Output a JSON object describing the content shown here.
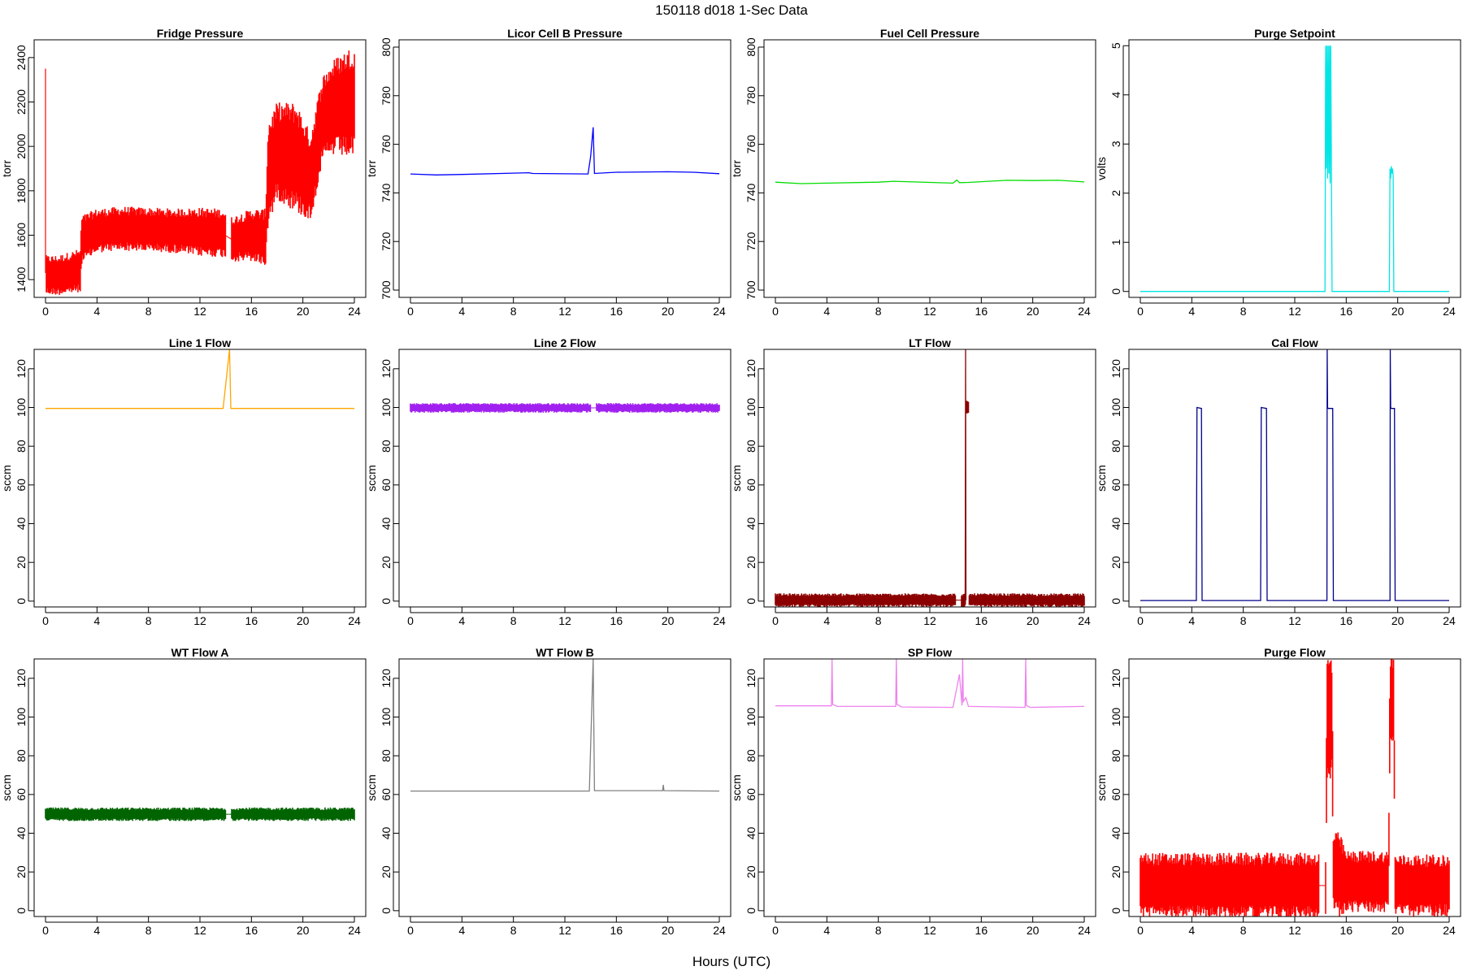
{
  "figure": {
    "title": "150118   d018   1-Sec Data",
    "xlabel": "Hours (UTC)",
    "x_ticks": [
      0,
      4,
      8,
      12,
      16,
      20,
      24
    ],
    "xlim": [
      0,
      24
    ]
  },
  "chart_data": [
    {
      "type": "line",
      "title": "Fridge Pressure",
      "ylabel": "torr",
      "color": "#ff0000",
      "ylim": [
        1320,
        2480
      ],
      "yticks": [
        1400,
        1600,
        1800,
        2000,
        2200,
        2400
      ],
      "series": [
        {
          "style": "noisy",
          "gap_after": 14,
          "x": [
            0,
            0.02,
            0.05,
            1,
            2.7,
            2.8,
            4,
            6,
            8,
            10,
            12,
            13.8,
            14.3,
            16,
            17.1,
            17.3,
            18,
            19.5,
            20.6,
            21.5,
            22.5,
            24
          ],
          "y": [
            2350,
            1430,
            1420,
            1420,
            1440,
            1580,
            1620,
            1630,
            1625,
            1620,
            1615,
            1610,
            1580,
            1600,
            1590,
            1880,
            1980,
            1950,
            1860,
            2120,
            2180,
            2200
          ],
          "noise": [
            0,
            90,
            90,
            90,
            100,
            110,
            100,
            100,
            100,
            100,
            110,
            110,
            100,
            120,
            130,
            240,
            220,
            250,
            200,
            200,
            220,
            260
          ]
        }
      ]
    },
    {
      "type": "line",
      "title": "Licor Cell B Pressure",
      "ylabel": "torr",
      "color": "#0000ff",
      "ylim": [
        697,
        803
      ],
      "yticks": [
        700,
        720,
        740,
        760,
        780,
        800
      ],
      "series": [
        {
          "style": "line",
          "x": [
            0,
            2,
            4,
            9.2,
            9.5,
            13.8,
            14,
            14.2,
            14.3,
            16,
            20,
            22,
            24
          ],
          "y": [
            747.8,
            747.4,
            747.6,
            748.3,
            748,
            747.8,
            755,
            767,
            748,
            748.5,
            748.7,
            748.5,
            747.9
          ]
        }
      ]
    },
    {
      "type": "line",
      "title": "Fuel Cell Pressure",
      "ylabel": "torr",
      "color": "#00dd00",
      "ylim": [
        697,
        803
      ],
      "yticks": [
        700,
        720,
        740,
        760,
        780,
        800
      ],
      "series": [
        {
          "style": "line",
          "x": [
            0,
            2,
            4,
            8,
            9.2,
            12,
            13.8,
            14.1,
            14.3,
            15,
            18,
            20,
            22,
            24
          ],
          "y": [
            744.4,
            743.8,
            744,
            744.4,
            744.8,
            744.3,
            744,
            745.3,
            744.2,
            744.3,
            745.2,
            745.1,
            745.2,
            744.5
          ]
        }
      ]
    },
    {
      "type": "line",
      "title": "Purge Setpoint",
      "ylabel": "volts",
      "color": "#00e5e5",
      "ylim": [
        -0.12,
        5.12
      ],
      "yticks": [
        0,
        1,
        2,
        3,
        4,
        5
      ],
      "series": [
        {
          "style": "line",
          "x": [
            0,
            14.35,
            14.4,
            14.45,
            14.5,
            14.55,
            14.6,
            14.65,
            14.7,
            14.75,
            14.8,
            14.85,
            14.9,
            14.95,
            19.35,
            19.4,
            19.45,
            19.5,
            19.55,
            19.6,
            19.65,
            19.7,
            24
          ],
          "y": [
            0,
            0,
            5,
            2.5,
            5,
            2.3,
            5,
            2.4,
            5,
            2.2,
            5,
            2.5,
            0,
            0,
            0,
            2.5,
            2.3,
            2.55,
            2.4,
            2.5,
            2.35,
            0,
            0
          ]
        }
      ]
    },
    {
      "type": "line",
      "title": "Line 1 Flow",
      "ylabel": "sccm",
      "color": "#ffa500",
      "ylim": [
        -3,
        130
      ],
      "yticks": [
        0,
        20,
        40,
        60,
        80,
        100,
        120
      ],
      "series": [
        {
          "style": "line",
          "x": [
            0,
            13.8,
            14.3,
            14.4,
            24
          ],
          "y": [
            99.5,
            99.5,
            130,
            99.5,
            99.5
          ]
        }
      ]
    },
    {
      "type": "line",
      "title": "Line 2 Flow",
      "ylabel": "sccm",
      "color": "#a020f0",
      "ylim": [
        -3,
        130
      ],
      "yticks": [
        0,
        20,
        40,
        60,
        80,
        100,
        120
      ],
      "series": [
        {
          "style": "noisy",
          "gap_after": 14,
          "x": [
            0,
            13.8,
            14.3,
            24
          ],
          "y": [
            99.8,
            99.8,
            99.8,
            99.8
          ],
          "noise": [
            2.5,
            2.5,
            2.5,
            2.5
          ]
        }
      ]
    },
    {
      "type": "line",
      "title": "LT Flow",
      "ylabel": "sccm",
      "color": "#8b0000",
      "ylim": [
        -3,
        130
      ],
      "yticks": [
        0,
        20,
        40,
        60,
        80,
        100,
        120
      ],
      "series": [
        {
          "style": "noisy",
          "gap_after": 14,
          "x": [
            0,
            13.8,
            14.3,
            14.8,
            14.82,
            15.0,
            15.02,
            24
          ],
          "y": [
            0.5,
            0.5,
            0.5,
            0.5,
            100,
            100,
            0.5,
            0.5
          ],
          "noise": [
            3.5,
            3.5,
            3.5,
            3.5,
            3.5,
            3.5,
            3.5,
            3.5
          ]
        },
        {
          "style": "line",
          "x": [
            14.75,
            14.78,
            14.81
          ],
          "y": [
            0.5,
            130,
            0.5
          ]
        }
      ]
    },
    {
      "type": "line",
      "title": "Cal Flow",
      "ylabel": "sccm",
      "color": "#00008b",
      "ylim": [
        -3,
        130
      ],
      "yticks": [
        0,
        20,
        40,
        60,
        80,
        100,
        120
      ],
      "series": [
        {
          "style": "line",
          "x": [
            0,
            4.35,
            4.4,
            4.75,
            4.8,
            9.35,
            9.4,
            9.8,
            9.85,
            14.5,
            14.52,
            14.55,
            14.6,
            14.95,
            15.0,
            19.4,
            19.42,
            19.45,
            19.5,
            19.75,
            19.8,
            24
          ],
          "y": [
            0.3,
            0.3,
            100,
            99.5,
            0.3,
            0.3,
            100,
            99.5,
            0.3,
            0.3,
            130,
            100,
            99.5,
            99.5,
            0.3,
            0.3,
            130,
            100,
            99.5,
            99.5,
            0.3,
            0.3
          ]
        }
      ]
    },
    {
      "type": "line",
      "title": "WT Flow A",
      "ylabel": "sccm",
      "color": "#006400",
      "ylim": [
        -3,
        130
      ],
      "yticks": [
        0,
        20,
        40,
        60,
        80,
        100,
        120
      ],
      "series": [
        {
          "style": "noisy",
          "gap_after": 14,
          "x": [
            0,
            13.8,
            14.3,
            24
          ],
          "y": [
            49.8,
            49.8,
            49.8,
            49.8
          ],
          "noise": [
            3.5,
            3.5,
            3.5,
            3.5
          ]
        }
      ]
    },
    {
      "type": "line",
      "title": "WT Flow B",
      "ylabel": "sccm",
      "color": "#808080",
      "ylim": [
        -3,
        130
      ],
      "yticks": [
        0,
        20,
        40,
        60,
        80,
        100,
        120
      ],
      "series": [
        {
          "style": "line",
          "x": [
            0,
            13.9,
            14.2,
            14.3,
            19.6,
            19.65,
            19.7,
            24
          ],
          "y": [
            61.8,
            61.8,
            130,
            62,
            62,
            65,
            62,
            61.8
          ]
        }
      ]
    },
    {
      "type": "line",
      "title": "SP Flow",
      "ylabel": "sccm",
      "color": "#ee82ee",
      "ylim": [
        -3,
        130
      ],
      "yticks": [
        0,
        20,
        40,
        60,
        80,
        100,
        120
      ],
      "series": [
        {
          "style": "line",
          "x": [
            0,
            4.35,
            4.4,
            4.45,
            4.8,
            9.35,
            9.4,
            9.45,
            9.8,
            13.8,
            14.3,
            14.5,
            14.55,
            14.6,
            14.8,
            15,
            19.4,
            19.45,
            19.5,
            19.8,
            24
          ],
          "y": [
            105.8,
            105.8,
            130,
            106.5,
            105.5,
            105.5,
            130,
            106.5,
            105.2,
            105,
            122,
            106,
            130,
            108,
            110,
            105.5,
            105,
            130,
            106,
            105,
            105.5
          ]
        }
      ]
    },
    {
      "type": "line",
      "title": "Purge Flow",
      "ylabel": "sccm",
      "color": "#ff0000",
      "ylim": [
        -3,
        130
      ],
      "yticks": [
        0,
        20,
        40,
        60,
        80,
        100,
        120
      ],
      "series": [
        {
          "style": "noisy",
          "gap_after": 13.9,
          "x": [
            0,
            13.8,
            14.3,
            14.4,
            14.5,
            14.9,
            15.0,
            15.5,
            16,
            19.3,
            19.4,
            19.7,
            19.8,
            24
          ],
          "y": [
            13,
            13,
            13,
            13,
            100,
            100,
            20,
            18,
            15,
            15,
            110,
            110,
            13,
            13
          ],
          "noise": [
            17,
            17,
            17,
            17,
            33,
            33,
            22,
            22,
            16,
            16,
            24,
            24,
            16,
            16
          ]
        }
      ]
    }
  ]
}
